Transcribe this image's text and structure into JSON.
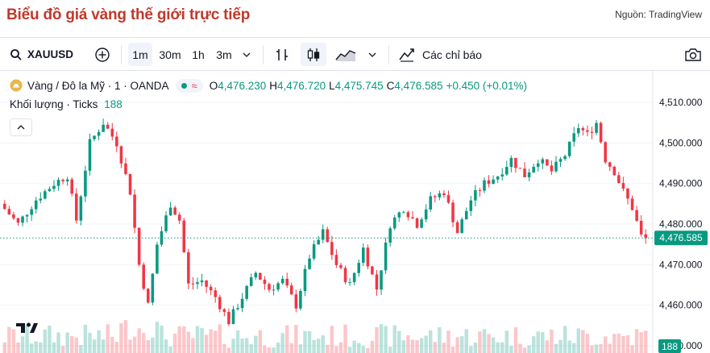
{
  "page": {
    "title": "Biểu đồ giá vàng thế giới trực tiếp",
    "source": "Nguồn: TradingView"
  },
  "toolbar": {
    "symbol": "XAUUSD",
    "intervals": [
      "1m",
      "30m",
      "1h",
      "3m"
    ],
    "indicators_label": "Các chỉ báo"
  },
  "legend": {
    "title": "Vàng / Đô la Mỹ · 1 · OANDA",
    "o_label": "O",
    "o_value": "4,476.230",
    "h_label": "H",
    "h_value": "4,476.720",
    "l_label": "L",
    "l_value": "4,475.745",
    "c_label": "C",
    "c_value": "4,476.585",
    "change": "+0.450 (+0.01%)",
    "volume_label": "Khối lượng · Ticks",
    "volume_value": "188"
  },
  "colors": {
    "up": "#089981",
    "down": "#f23645",
    "title": "#c0392b"
  },
  "chart_data": {
    "type": "candlestick",
    "title": "Vàng / Đô la Mỹ · 1 · OANDA",
    "y_ticks": [
      "4,510.000",
      "4,500.000",
      "4,490.000",
      "4,480.000",
      "4,470.000",
      "4,460.000",
      "4,450.000"
    ],
    "ylim": [
      4450,
      4512
    ],
    "last_price_label": "4,476.585",
    "last_price": 4476.585,
    "volume_label": "188",
    "approx_close_path": [
      {
        "x": 0,
        "y": 4485
      },
      {
        "x": 4,
        "y": 4480
      },
      {
        "x": 8,
        "y": 4486
      },
      {
        "x": 12,
        "y": 4490
      },
      {
        "x": 15,
        "y": 4492
      },
      {
        "x": 17,
        "y": 4481
      },
      {
        "x": 20,
        "y": 4500
      },
      {
        "x": 23,
        "y": 4505
      },
      {
        "x": 26,
        "y": 4500
      },
      {
        "x": 29,
        "y": 4488
      },
      {
        "x": 31,
        "y": 4470
      },
      {
        "x": 33,
        "y": 4460
      },
      {
        "x": 35,
        "y": 4475
      },
      {
        "x": 38,
        "y": 4485
      },
      {
        "x": 40,
        "y": 4481
      },
      {
        "x": 42,
        "y": 4465
      },
      {
        "x": 45,
        "y": 4466
      },
      {
        "x": 48,
        "y": 4462
      },
      {
        "x": 51,
        "y": 4456
      },
      {
        "x": 54,
        "y": 4462
      },
      {
        "x": 57,
        "y": 4468
      },
      {
        "x": 60,
        "y": 4464
      },
      {
        "x": 63,
        "y": 4466
      },
      {
        "x": 66,
        "y": 4460
      },
      {
        "x": 69,
        "y": 4472
      },
      {
        "x": 72,
        "y": 4478
      },
      {
        "x": 75,
        "y": 4470
      },
      {
        "x": 78,
        "y": 4465
      },
      {
        "x": 81,
        "y": 4474
      },
      {
        "x": 84,
        "y": 4464
      },
      {
        "x": 87,
        "y": 4480
      },
      {
        "x": 90,
        "y": 4484
      },
      {
        "x": 93,
        "y": 4480
      },
      {
        "x": 96,
        "y": 4486
      },
      {
        "x": 99,
        "y": 4488
      },
      {
        "x": 102,
        "y": 4478
      },
      {
        "x": 105,
        "y": 4486
      },
      {
        "x": 108,
        "y": 4490
      },
      {
        "x": 111,
        "y": 4492
      },
      {
        "x": 114,
        "y": 4496
      },
      {
        "x": 117,
        "y": 4492
      },
      {
        "x": 120,
        "y": 4496
      },
      {
        "x": 123,
        "y": 4493
      },
      {
        "x": 126,
        "y": 4497
      },
      {
        "x": 129,
        "y": 4504
      },
      {
        "x": 131,
        "y": 4502
      },
      {
        "x": 133,
        "y": 4505
      },
      {
        "x": 135,
        "y": 4496
      },
      {
        "x": 137,
        "y": 4493
      },
      {
        "x": 139,
        "y": 4488
      },
      {
        "x": 141,
        "y": 4484
      },
      {
        "x": 143,
        "y": 4477
      }
    ]
  }
}
